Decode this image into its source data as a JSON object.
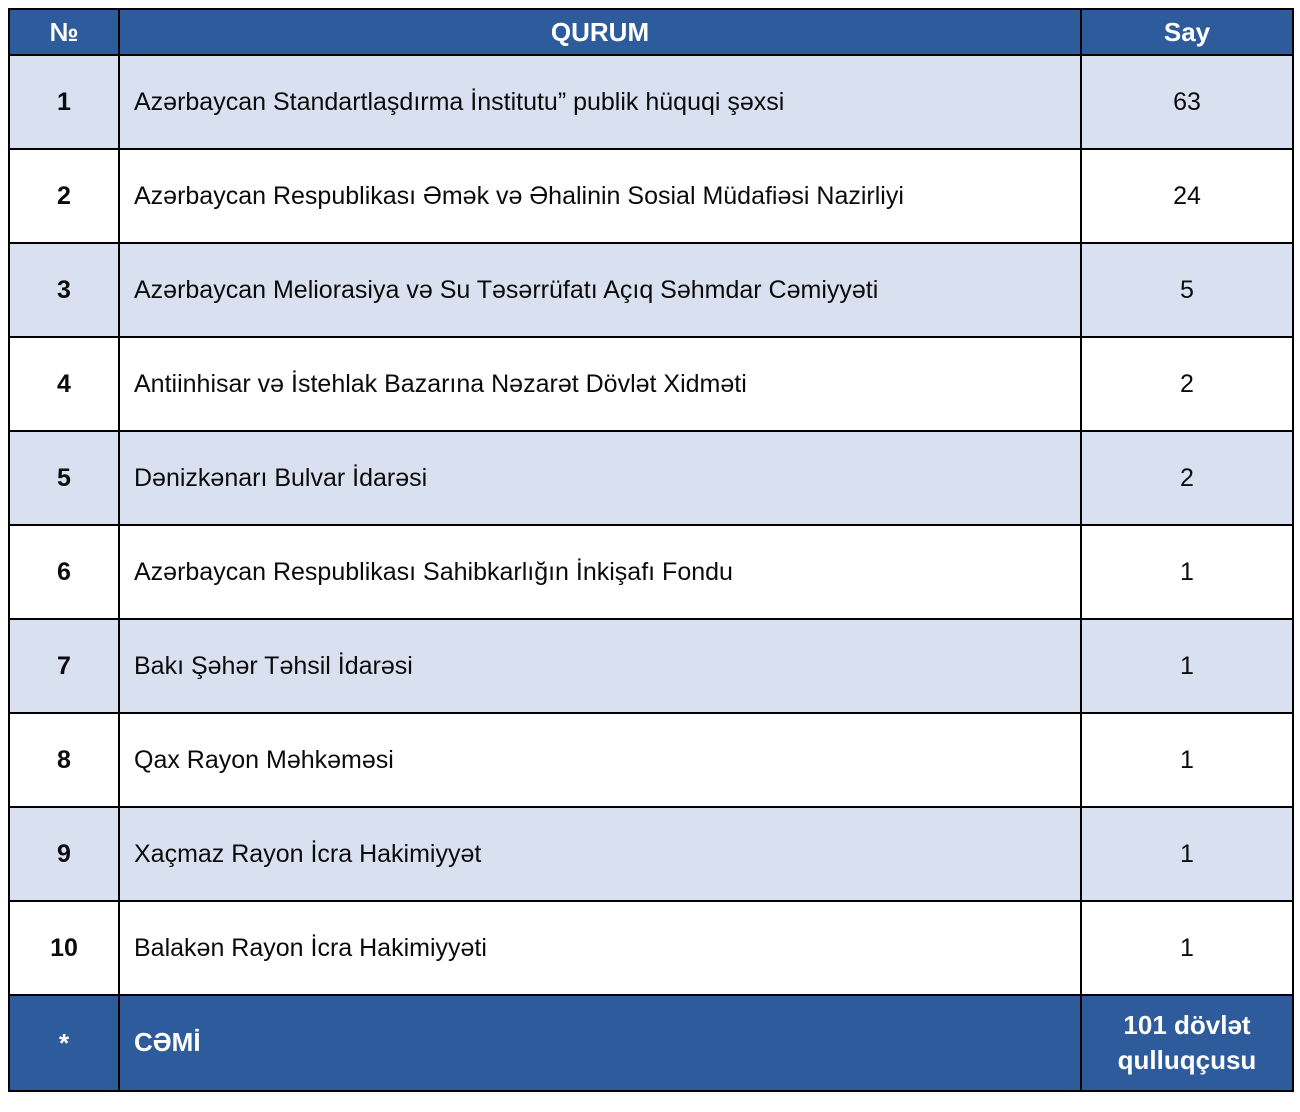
{
  "table": {
    "headers": {
      "num": "№",
      "qurum": "QURUM",
      "say": "Say"
    },
    "rows": [
      {
        "num": "1",
        "qurum": "Azərbaycan Standartlaşdırma İnstitutu” publik hüquqi şəxsi",
        "say": "63"
      },
      {
        "num": "2",
        "qurum": "Azərbaycan Respublikası Əmək və Əhalinin Sosial Müdafiəsi Nazirliyi",
        "say": "24"
      },
      {
        "num": "3",
        "qurum": "Azərbaycan Meliorasiya və Su Təsərrüfatı Açıq Səhmdar Cəmiyyəti",
        "say": "5"
      },
      {
        "num": "4",
        "qurum": "Antiinhisar və İstehlak Bazarına Nəzarət Dövlət Xidməti",
        "say": "2"
      },
      {
        "num": "5",
        "qurum": "Dənizkənarı Bulvar İdarəsi",
        "say": "2"
      },
      {
        "num": "6",
        "qurum": "Azərbaycan Respublikası Sahibkarlığın İnkişafı Fondu",
        "say": "1"
      },
      {
        "num": "7",
        "qurum": "Bakı Şəhər Təhsil İdarəsi",
        "say": "1"
      },
      {
        "num": "8",
        "qurum": "Qax Rayon Məhkəməsi",
        "say": "1"
      },
      {
        "num": "9",
        "qurum": "Xaçmaz Rayon İcra Hakimiyyət",
        "say": "1"
      },
      {
        "num": "10",
        "qurum": "Balakən Rayon İcra Hakimiyyəti",
        "say": "1"
      }
    ],
    "footer": {
      "num": "*",
      "qurum": "CƏMİ",
      "say": "101 dövlət qulluqçusu"
    }
  },
  "colors": {
    "header_bg": "#2e5b9b",
    "band_row_bg": "#d9e1f1",
    "plain_row_bg": "#ffffff",
    "border": "#000000",
    "header_text": "#ffffff"
  }
}
